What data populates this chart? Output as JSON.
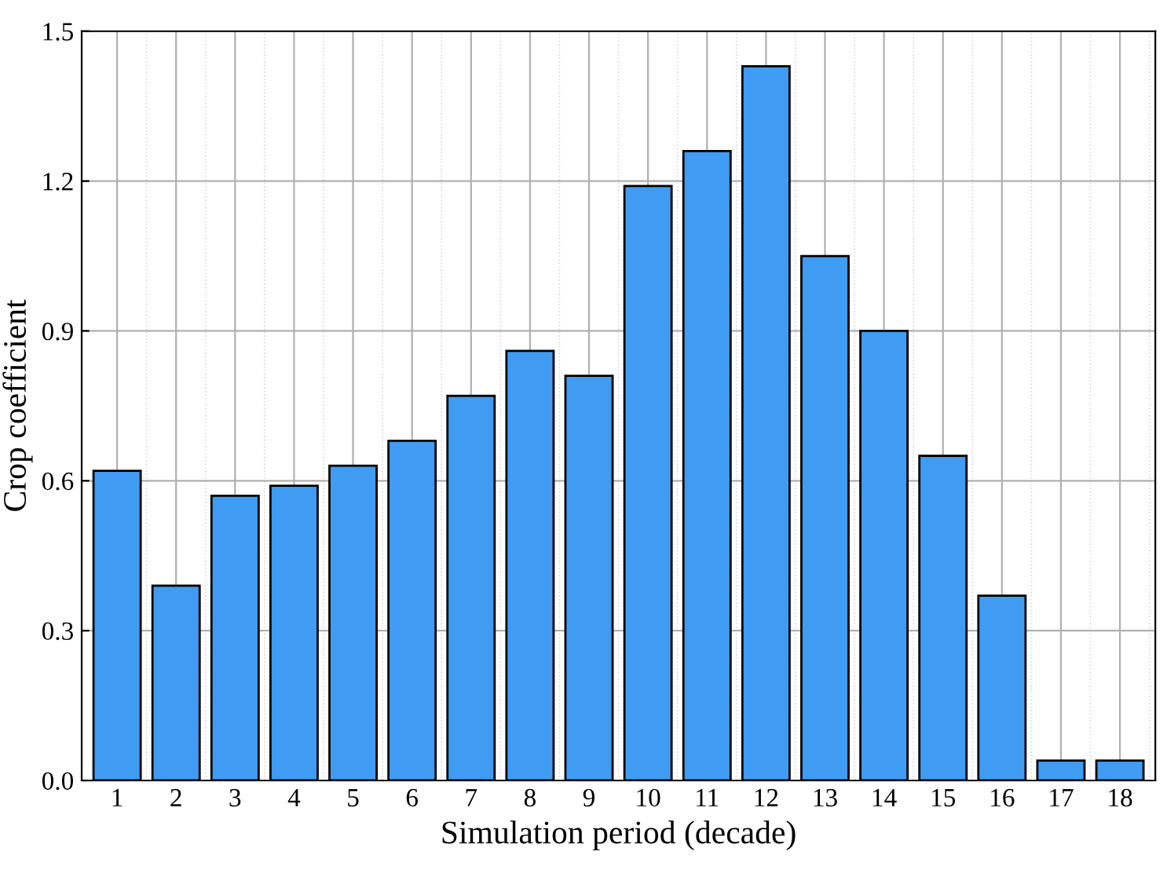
{
  "chart_data": {
    "type": "bar",
    "xlabel": "Simulation period (decade)",
    "ylabel": "Crop coefficient",
    "categories": [
      "1",
      "2",
      "3",
      "4",
      "5",
      "6",
      "7",
      "8",
      "9",
      "10",
      "11",
      "12",
      "13",
      "14",
      "15",
      "16",
      "17",
      "18"
    ],
    "values": [
      0.62,
      0.39,
      0.57,
      0.59,
      0.63,
      0.68,
      0.77,
      0.86,
      0.81,
      1.19,
      1.26,
      1.43,
      1.05,
      0.9,
      0.65,
      0.37,
      0.04,
      0.04
    ],
    "color": "#3f9cf2",
    "ylim": [
      0,
      1.5
    ],
    "yticks": [
      {
        "value": 0,
        "label": "0.0"
      },
      {
        "value": 0.3,
        "label": "0.3"
      },
      {
        "value": 0.6,
        "label": "0.6"
      },
      {
        "value": 0.9,
        "label": "0.9"
      },
      {
        "value": 1.2,
        "label": "1.2"
      },
      {
        "value": 1.5,
        "label": "1.5"
      }
    ],
    "grid": true
  }
}
